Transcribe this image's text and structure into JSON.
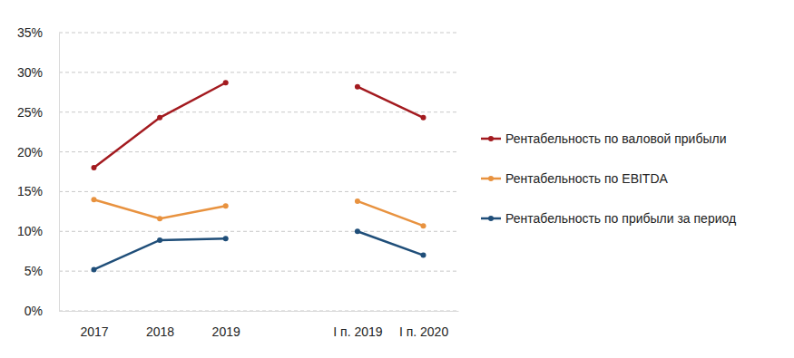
{
  "chart_data": {
    "type": "line",
    "categories": [
      "2017",
      "2018",
      "2019",
      null,
      "I п. 2019",
      "I п. 2020"
    ],
    "series": [
      {
        "name": "Рентабельность по валовой прибыли",
        "color": "#a31a1f",
        "marker": "circle",
        "line_style": "solid",
        "values": [
          18.0,
          24.3,
          28.7,
          null,
          28.2,
          24.3
        ]
      },
      {
        "name": "Рентабельность по EBITDA",
        "color": "#e8923f",
        "marker": "circle",
        "line_style": "solid",
        "values": [
          14.0,
          11.6,
          13.2,
          null,
          13.8,
          10.7
        ]
      },
      {
        "name": "Рентабельность по прибыли за период",
        "color": "#1f4e79",
        "marker": "circle",
        "line_style": "solid",
        "values": [
          5.2,
          8.9,
          9.1,
          null,
          10.0,
          7.0
        ]
      }
    ],
    "ylim": [
      0,
      35
    ],
    "yticks": [
      {
        "value": 0,
        "label": "0%"
      },
      {
        "value": 5,
        "label": "5%"
      },
      {
        "value": 10,
        "label": "10%"
      },
      {
        "value": 15,
        "label": "15%"
      },
      {
        "value": 20,
        "label": "20%"
      },
      {
        "value": 25,
        "label": "25%"
      },
      {
        "value": 30,
        "label": "30%"
      },
      {
        "value": 35,
        "label": "35%"
      }
    ],
    "grid": true,
    "legend": "right"
  }
}
